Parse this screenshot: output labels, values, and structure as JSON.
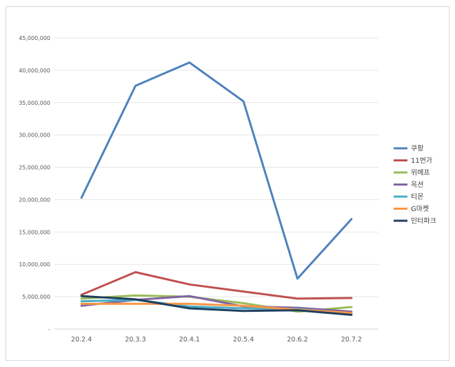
{
  "chart_data": {
    "type": "line",
    "title": "",
    "xlabel": "",
    "ylabel": "",
    "categories": [
      "20.2.4",
      "20.3.3",
      "20.4.1",
      "20.5.4",
      "20.6.2",
      "20.7.2"
    ],
    "ylim": [
      0,
      45000000
    ],
    "yticks": [
      0,
      5000000,
      10000000,
      15000000,
      20000000,
      25000000,
      30000000,
      35000000,
      40000000,
      45000000
    ],
    "ytick_labels": [
      "-",
      "5,000,000",
      "10,000,000",
      "15,000,000",
      "20,000,000",
      "25,000,000",
      "30,000,000",
      "35,000,000",
      "40,000,000",
      "45,000,000"
    ],
    "grid": true,
    "legend_position": "right",
    "series": [
      {
        "name": "쿠팡",
        "color": "#4f81bd",
        "values": [
          20300000,
          37600000,
          41200000,
          35200000,
          7800000,
          17000000
        ]
      },
      {
        "name": "11번가",
        "color": "#c0504d",
        "values": [
          5300000,
          8800000,
          6900000,
          5800000,
          4700000,
          4800000
        ]
      },
      {
        "name": "위메프",
        "color": "#9bbb59",
        "values": [
          4700000,
          5200000,
          5000000,
          4000000,
          2700000,
          3400000
        ]
      },
      {
        "name": "옥션",
        "color": "#8064a2",
        "values": [
          3600000,
          4500000,
          5100000,
          3500000,
          3300000,
          2700000
        ]
      },
      {
        "name": "티몬",
        "color": "#4bacc6",
        "values": [
          4300000,
          4500000,
          3500000,
          3200000,
          3100000,
          2400000
        ]
      },
      {
        "name": "G마켓",
        "color": "#f79646",
        "values": [
          3900000,
          3900000,
          3900000,
          3600000,
          3000000,
          2500000
        ]
      },
      {
        "name": "인터파크",
        "color": "#1f3f60",
        "values": [
          5100000,
          4600000,
          3200000,
          2800000,
          2900000,
          2200000
        ]
      }
    ]
  }
}
